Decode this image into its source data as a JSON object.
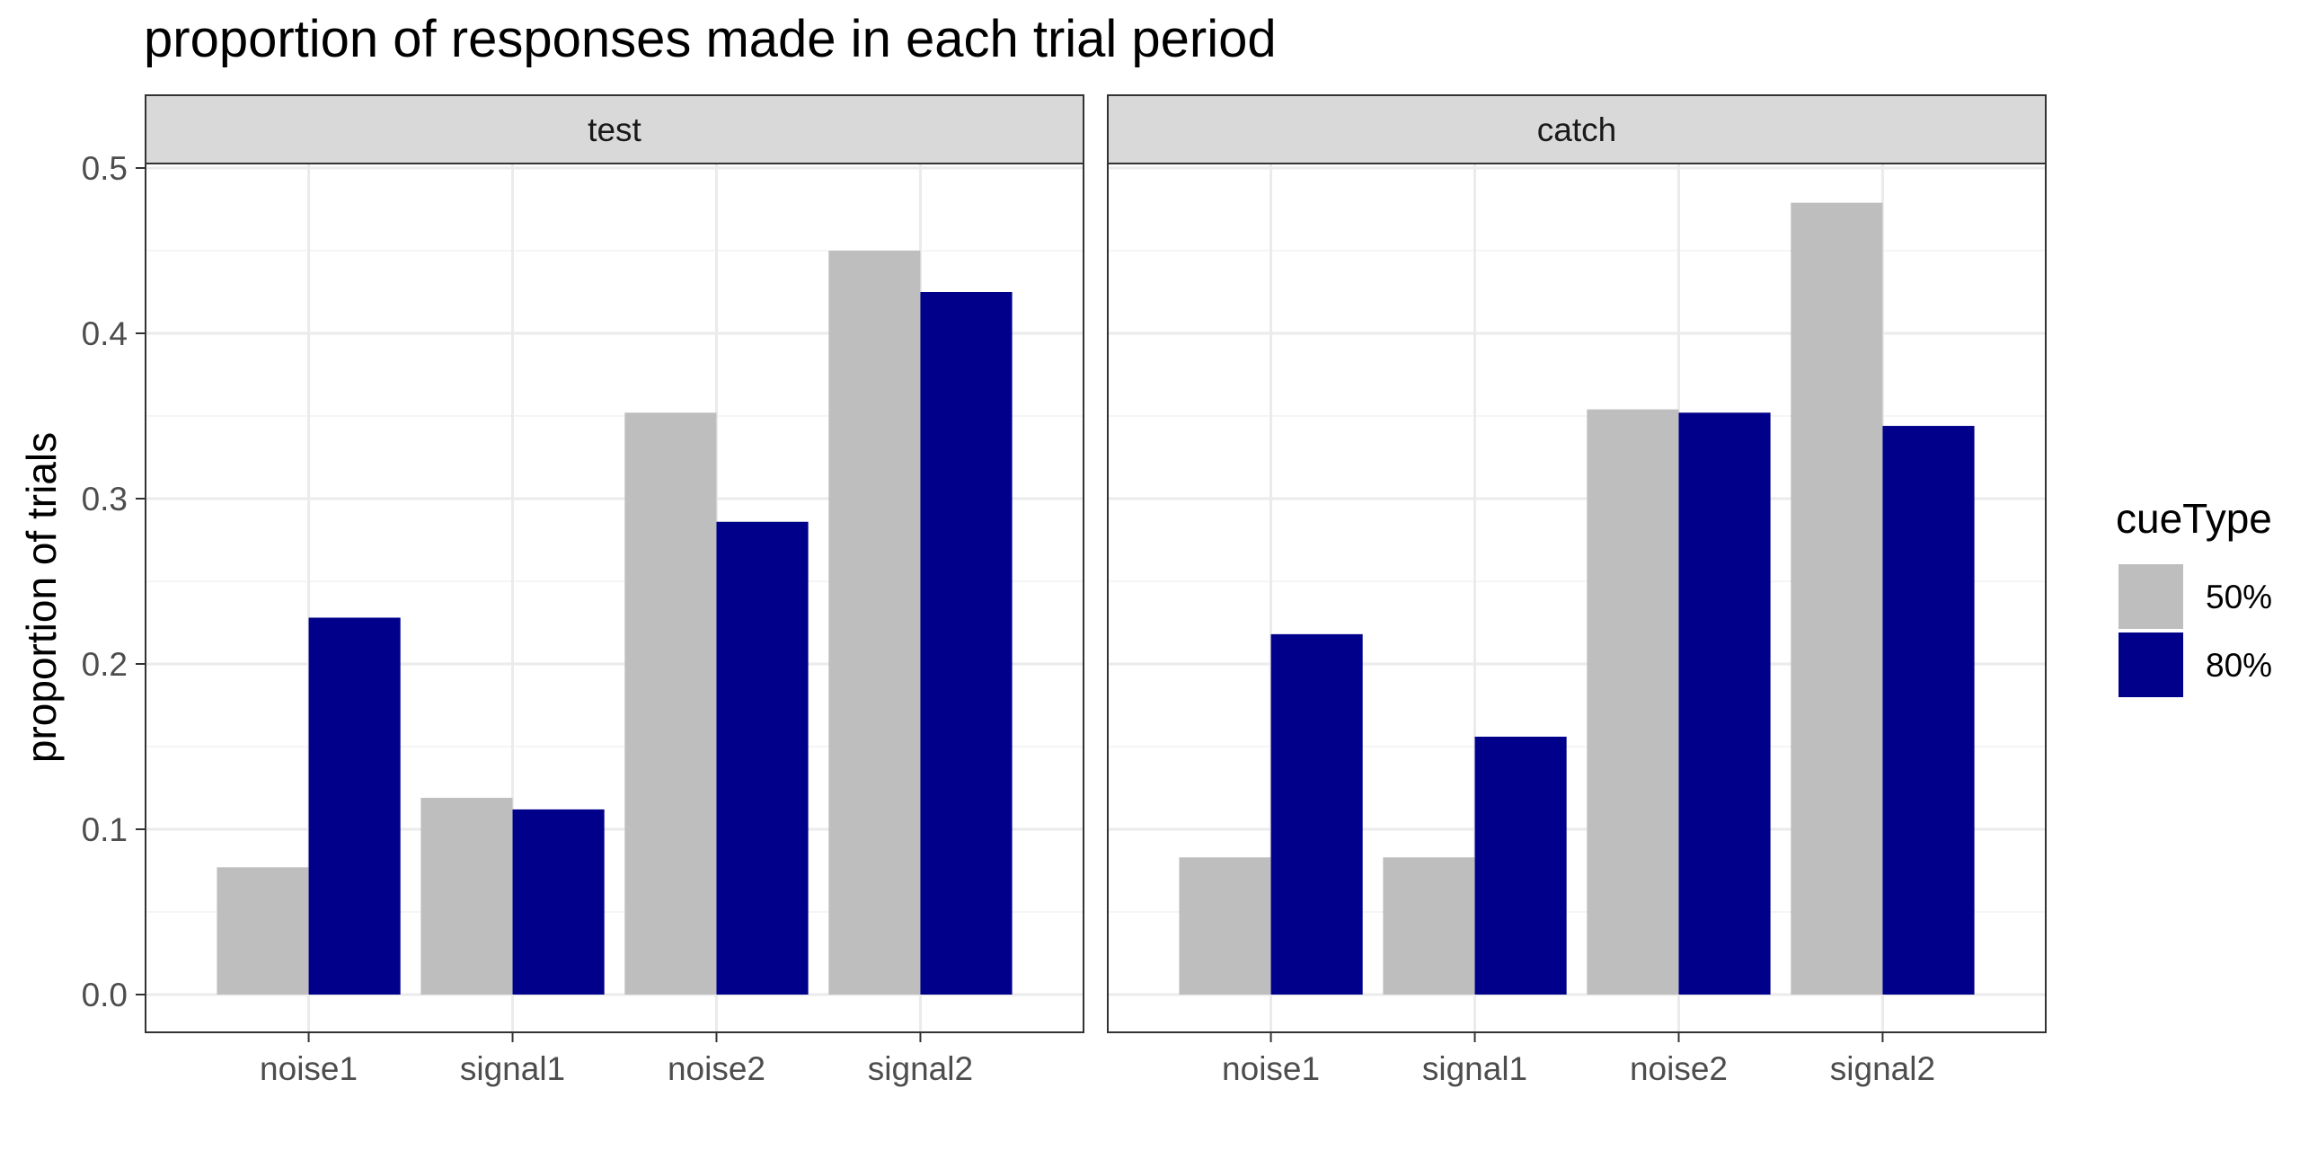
{
  "chart_data": {
    "type": "bar",
    "title": "proportion of responses made in each trial period",
    "ylabel": "proportion of trials",
    "xlabel": "",
    "ylim": [
      0,
      0.5
    ],
    "yticks": [
      "0.0",
      "0.1",
      "0.2",
      "0.3",
      "0.4",
      "0.5"
    ],
    "grid": true,
    "legend": {
      "title": "cueType",
      "position": "right",
      "entries": [
        {
          "label": "50%",
          "color": "#BEBEBE"
        },
        {
          "label": "80%",
          "color": "#00008B"
        }
      ]
    },
    "facets": [
      {
        "label": "test",
        "categories": [
          "noise1",
          "signal1",
          "noise2",
          "signal2"
        ],
        "series": [
          {
            "name": "50%",
            "values": [
              0.077,
              0.119,
              0.352,
              0.45
            ]
          },
          {
            "name": "80%",
            "values": [
              0.228,
              0.112,
              0.286,
              0.425
            ]
          }
        ]
      },
      {
        "label": "catch",
        "categories": [
          "noise1",
          "signal1",
          "noise2",
          "signal2"
        ],
        "series": [
          {
            "name": "50%",
            "values": [
              0.083,
              0.083,
              0.354,
              0.479
            ]
          },
          {
            "name": "80%",
            "values": [
              0.218,
              0.156,
              0.352,
              0.344
            ]
          }
        ]
      }
    ]
  }
}
